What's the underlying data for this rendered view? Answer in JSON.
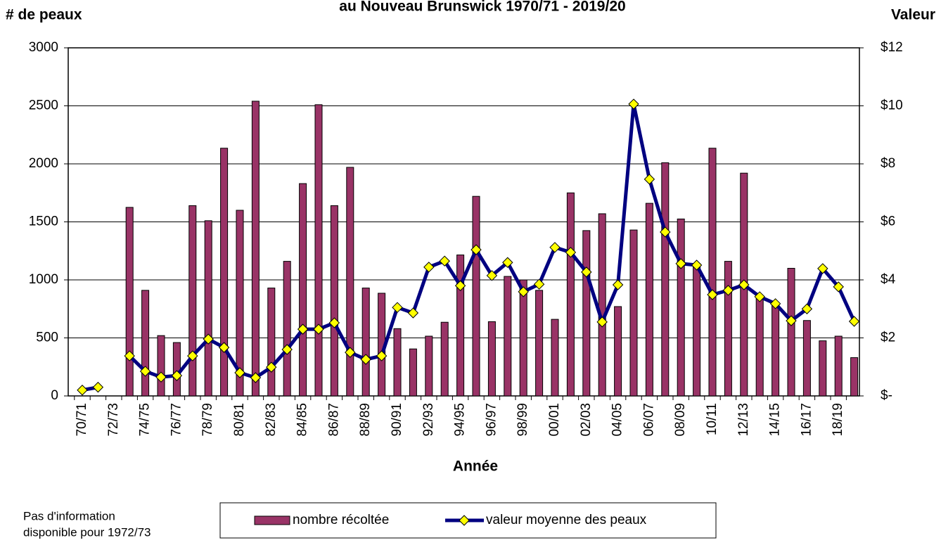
{
  "chart_data": {
    "type": "bar-line",
    "title": "au Nouveau Brunswick 1970/71 - 2019/20",
    "y_label": "# de peaux",
    "y2_label": "Valeur",
    "x_label": "Année",
    "note": [
      "Pas d'information",
      "disponible pour 1972/73"
    ],
    "categories": [
      "70/71",
      null,
      "72/73",
      null,
      "74/75",
      null,
      "76/77",
      null,
      "78/79",
      null,
      "80/81",
      null,
      "82/83",
      null,
      "84/85",
      null,
      "86/87",
      null,
      "88/89",
      null,
      "90/91",
      null,
      "92/93",
      null,
      "94/95",
      null,
      "96/97",
      null,
      "98/99",
      null,
      "00/01",
      null,
      "02/03",
      null,
      "04/05",
      null,
      "06/07",
      null,
      "08/09",
      null,
      "10/11",
      null,
      "12/13",
      null,
      "14/15",
      null,
      "16/17",
      null,
      "18/19",
      null
    ],
    "series": [
      {
        "name": "nombre récoltée",
        "type": "bar",
        "color": "#993366",
        "values": [
          null,
          null,
          null,
          1625,
          910,
          520,
          460,
          1640,
          1510,
          2135,
          1600,
          2540,
          930,
          1160,
          1830,
          2510,
          1640,
          1970,
          930,
          885,
          580,
          405,
          515,
          635,
          1215,
          1720,
          640,
          1030,
          1000,
          910,
          660,
          1750,
          1425,
          1570,
          770,
          1430,
          1660,
          2010,
          1525,
          1140,
          2135,
          1160,
          1920,
          850,
          790,
          1100,
          650,
          475,
          515,
          330
        ]
      },
      {
        "name": "valeur moyenne des peaux",
        "type": "line",
        "axis": "y2",
        "color": "#000080",
        "marker_color": "#ffff00",
        "values": [
          0.2,
          0.3,
          null,
          1.38,
          0.85,
          0.65,
          0.7,
          1.38,
          1.96,
          1.67,
          0.8,
          0.63,
          0.99,
          1.6,
          2.3,
          2.3,
          2.52,
          1.5,
          1.26,
          1.38,
          3.05,
          2.86,
          4.44,
          4.65,
          3.8,
          5.04,
          4.15,
          4.6,
          3.59,
          3.85,
          5.12,
          4.95,
          4.27,
          2.55,
          3.83,
          10.06,
          7.47,
          5.65,
          4.56,
          4.51,
          3.49,
          3.64,
          3.83,
          3.42,
          3.18,
          2.59,
          3.0,
          4.39,
          3.76,
          2.57
        ]
      }
    ],
    "ylim": [
      0,
      3000
    ],
    "yticks": [
      0,
      500,
      1000,
      1500,
      2000,
      2500,
      3000
    ],
    "y2lim": [
      0,
      12
    ],
    "y2ticks": [
      {
        "value": 0,
        "label": "$-"
      },
      {
        "value": 2,
        "label": "$2"
      },
      {
        "value": 4,
        "label": "$4"
      },
      {
        "value": 6,
        "label": "$6"
      },
      {
        "value": 8,
        "label": "$8"
      },
      {
        "value": 10,
        "label": "$10"
      },
      {
        "value": 12,
        "label": "$12"
      }
    ],
    "grid": true
  }
}
